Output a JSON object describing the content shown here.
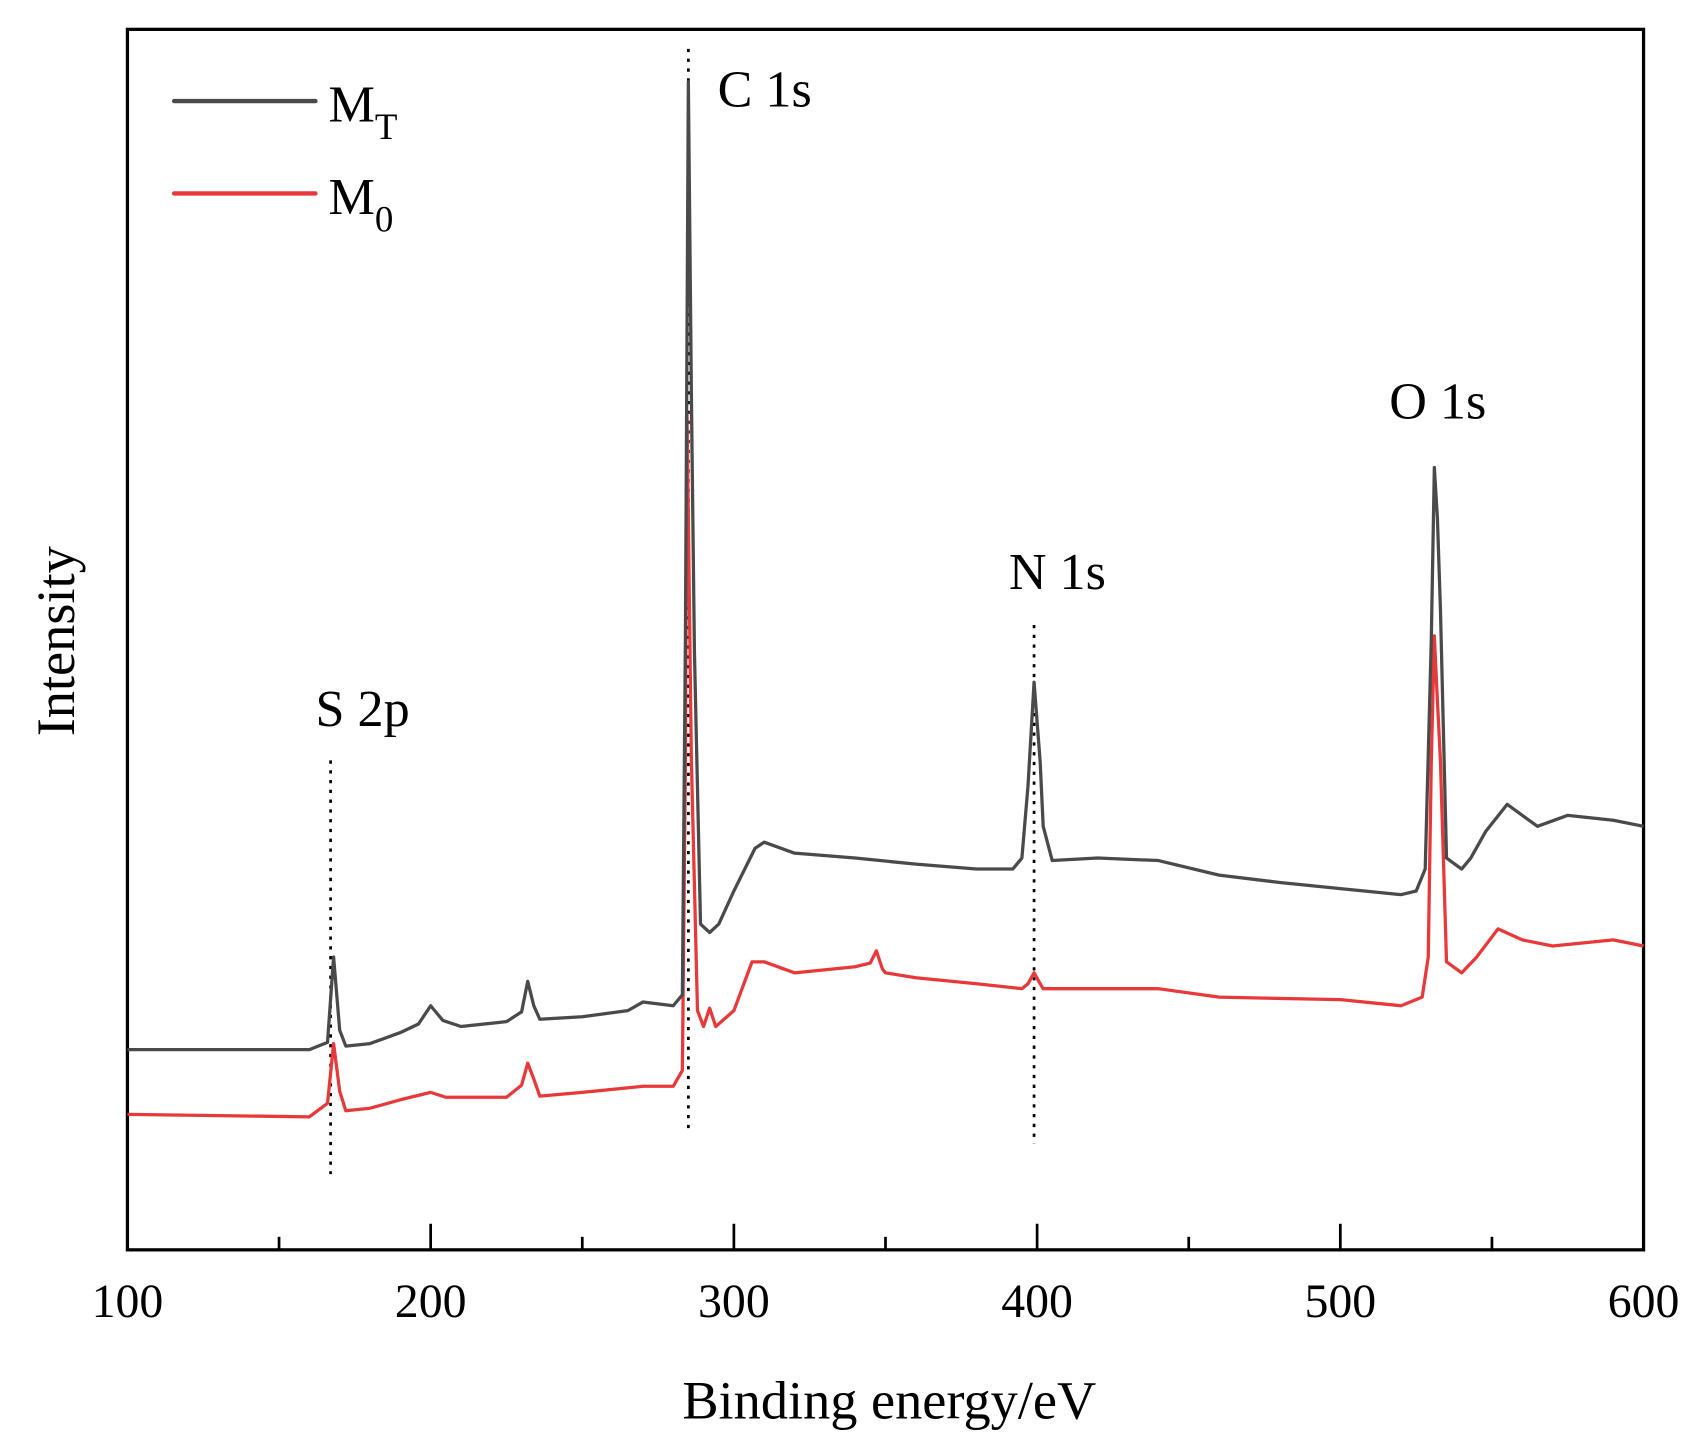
{
  "chart_data": {
    "type": "line",
    "xlabel": "Binding energy/eV",
    "ylabel": "Intensity",
    "xlim": [
      100,
      600
    ],
    "ylim": [
      0,
      100
    ],
    "xticks": [
      "100",
      "200",
      "300",
      "400",
      "500",
      "600"
    ],
    "yticks_shown": false,
    "grid": false,
    "legend_position": "top-left",
    "series": [
      {
        "name": "M",
        "name_sub": "T",
        "color": "#4a4a4a",
        "x": [
          100,
          160,
          166,
          168,
          170,
          172,
          180,
          190,
          196,
          200,
          204,
          210,
          225,
          230,
          232,
          234,
          236,
          250,
          265,
          270,
          280,
          283,
          284,
          285,
          286,
          287,
          289,
          292,
          295,
          300,
          307,
          310,
          320,
          340,
          360,
          380,
          392,
          395,
          397,
          399,
          401,
          402,
          405,
          420,
          440,
          460,
          480,
          500,
          520,
          525,
          528,
          530,
          531,
          532,
          533,
          535,
          540,
          543,
          548,
          555,
          560,
          565,
          575,
          590,
          600
        ],
        "y": [
          16.4,
          16.4,
          17,
          24.0,
          18,
          16.7,
          16.9,
          17.8,
          18.5,
          20.0,
          18.8,
          18.3,
          18.7,
          19.5,
          22.0,
          20,
          18.9,
          19.1,
          19.6,
          20.3,
          20.0,
          20.9,
          50,
          95.7,
          70,
          49.0,
          26.7,
          26.0,
          26.7,
          29.4,
          32.9,
          33.4,
          32.5,
          32.1,
          31.6,
          31.2,
          31.2,
          32.1,
          38,
          46.5,
          40,
          34.7,
          31.9,
          32.1,
          31.9,
          30.7,
          30.1,
          29.6,
          29.1,
          29.4,
          31.2,
          50,
          64.1,
          60,
          52.5,
          32.1,
          31.2,
          32.1,
          34.3,
          36.5,
          35.6,
          34.7,
          35.6,
          35.2,
          34.7
        ]
      },
      {
        "name": "M",
        "name_sub": "0",
        "color": "#e8393a",
        "x": [
          100,
          160,
          166,
          168,
          170,
          172,
          180,
          190,
          200,
          205,
          225,
          230,
          232,
          234,
          236,
          250,
          270,
          280,
          283,
          284,
          284.5,
          285,
          286,
          288,
          290,
          292,
          294,
          300,
          306,
          310,
          320,
          340,
          345,
          347,
          349,
          350,
          360,
          380,
          395,
          397,
          399,
          401,
          402,
          420,
          440,
          460,
          500,
          520,
          527,
          529,
          530,
          531,
          532,
          533,
          535,
          540,
          545,
          552,
          560,
          570,
          590,
          600
        ],
        "y": [
          11.1,
          10.9,
          12,
          16.9,
          13,
          11.4,
          11.6,
          12.3,
          12.9,
          12.5,
          12.5,
          13.5,
          15.3,
          14,
          12.6,
          12.9,
          13.4,
          13.4,
          14.7,
          40,
          68.6,
          60,
          40.1,
          19.6,
          18.3,
          19.8,
          18.3,
          19.6,
          23.6,
          23.6,
          22.7,
          23.2,
          23.5,
          24.5,
          23,
          22.7,
          22.3,
          21.8,
          21.4,
          21.8,
          22.7,
          21.8,
          21.4,
          21.4,
          21.4,
          20.7,
          20.5,
          20.0,
          20.7,
          24.0,
          40,
          50.3,
          45,
          40.1,
          23.6,
          22.7,
          24.0,
          26.3,
          25.4,
          24.9,
          25.4,
          24.9
        ]
      }
    ],
    "annotations": [
      {
        "label": "S 2p",
        "x": 167,
        "y_from": 6.2,
        "y_to": 40.1
      },
      {
        "label": "C 1s",
        "x": 285,
        "y_from": 9.8,
        "y_to": 98.4
      },
      {
        "label": "N 1s",
        "x": 399,
        "y_from": 8.7,
        "y_to": 51.2
      },
      {
        "label": "O 1s",
        "x": 532,
        "y_from": null,
        "y_to": null
      }
    ]
  }
}
